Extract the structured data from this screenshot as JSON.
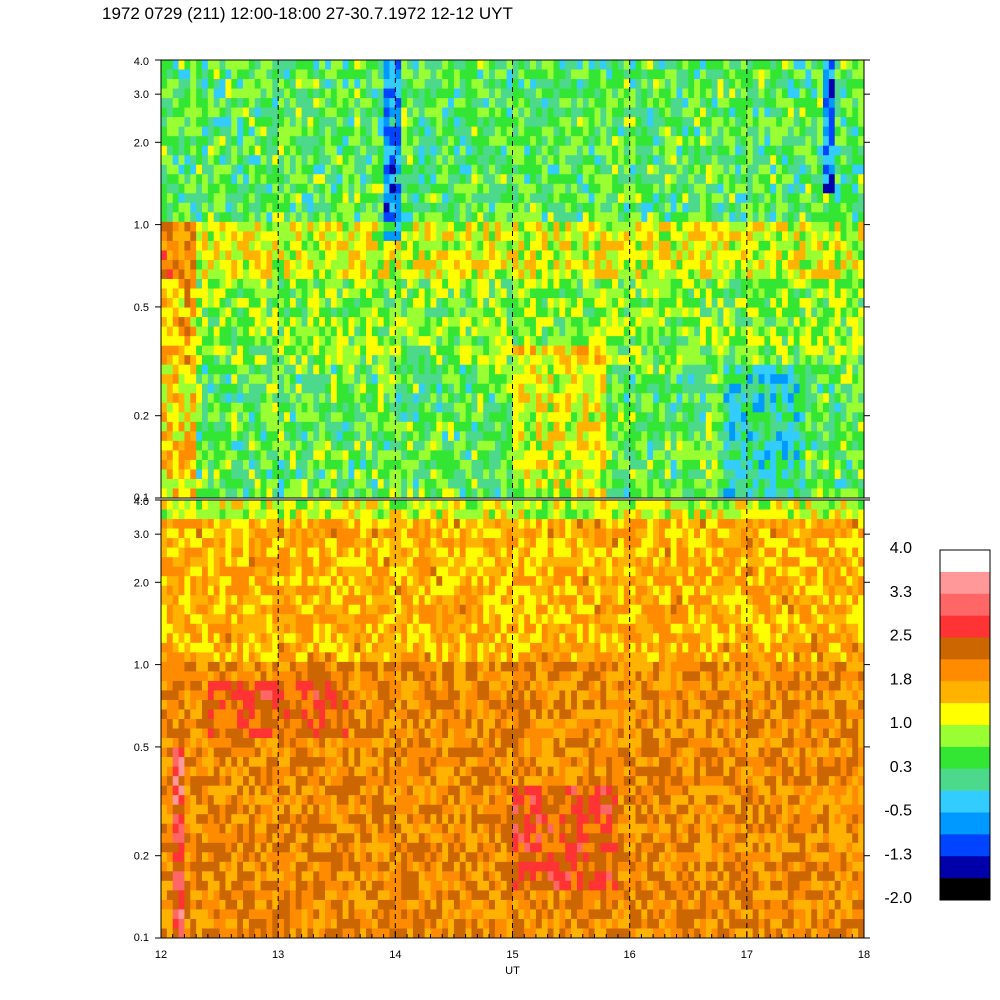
{
  "title": "1972 0729 (211) 12:00-18:00 27-30.7.1972  12-12 UYT",
  "chart_data": [
    {
      "type": "heatmap",
      "panel": "upper",
      "xlabel": "",
      "ylabel": "",
      "xlim": [
        12,
        18
      ],
      "ylim": [
        0.1,
        4.0
      ],
      "yscale": "log",
      "yticks": [
        "0.1",
        "0.2",
        "0.5",
        "1.0",
        "2.0",
        "3.0",
        "4.0"
      ],
      "time_markers": [
        13,
        14,
        15,
        16,
        17
      ],
      "dominant_levels": [
        {
          "y_range": [
            1.0,
            4.0
          ],
          "level": 0.3
        },
        {
          "y_range": [
            0.6,
            0.95
          ],
          "level": 1.2
        },
        {
          "y_range": [
            0.1,
            0.6
          ],
          "level": 0.6
        }
      ]
    },
    {
      "type": "heatmap",
      "panel": "lower",
      "xlabel": "UT",
      "ylabel": "",
      "xlim": [
        12,
        18
      ],
      "ylim": [
        0.1,
        4.0
      ],
      "yscale": "log",
      "xticks": [
        "12",
        "13",
        "14",
        "15",
        "16",
        "17",
        "18"
      ],
      "yticks": [
        "0.1",
        "0.2",
        "0.5",
        "1.0",
        "2.0",
        "3.0",
        "4.0"
      ],
      "time_markers": [
        13,
        14,
        15,
        16,
        17
      ],
      "dominant_levels": [
        {
          "y_range": [
            1.0,
            4.0
          ],
          "level": 1.6
        },
        {
          "y_range": [
            0.1,
            1.0
          ],
          "level": 1.9
        },
        {
          "y_range": [
            0.15,
            0.3
          ],
          "level": 2.3
        }
      ]
    }
  ],
  "colorbar": {
    "labels": [
      "4.0",
      "3.3",
      "2.5",
      "1.8",
      "1.0",
      "0.3",
      "-0.5",
      "-1.3",
      "-2.0"
    ],
    "colors": [
      "#ffffff",
      "#ff9999",
      "#ff6666",
      "#ff3333",
      "#cc6600",
      "#ff8c00",
      "#ffb300",
      "#ffff00",
      "#99ff33",
      "#33e633",
      "#4dd98c",
      "#33ccff",
      "#0099ff",
      "#0044ff",
      "#0000aa",
      "#000000"
    ]
  }
}
